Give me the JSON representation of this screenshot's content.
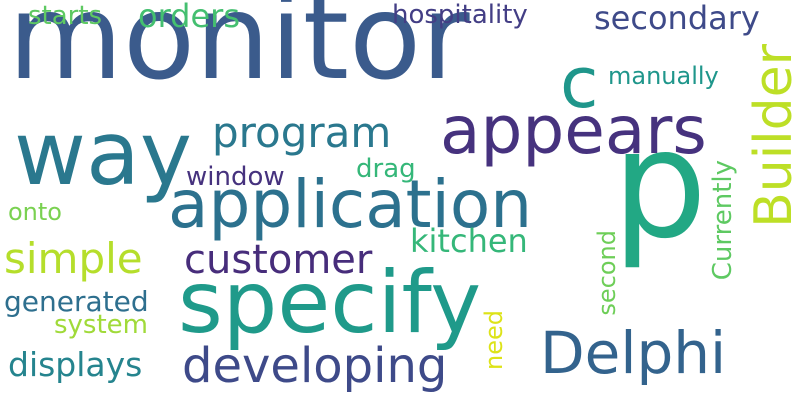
{
  "words": [
    {
      "text": "monitor",
      "color": "#3b5b8c",
      "vertical": false
    },
    {
      "text": "p",
      "color": "#22a884",
      "vertical": false
    },
    {
      "text": "specify",
      "color": "#1f9a8a",
      "vertical": false
    },
    {
      "text": "application",
      "color": "#2c718e",
      "vertical": false
    },
    {
      "text": "way",
      "color": "#2a788e",
      "vertical": false
    },
    {
      "text": "appears",
      "color": "#46327e",
      "vertical": false
    },
    {
      "text": "Builder",
      "color": "#bddf26",
      "vertical": true
    },
    {
      "text": "Delphi",
      "color": "#33638d",
      "vertical": false
    },
    {
      "text": "developing",
      "color": "#3e4a89",
      "vertical": false
    },
    {
      "text": "customer",
      "color": "#472d7b",
      "vertical": false
    },
    {
      "text": "c",
      "color": "#1f968b",
      "vertical": false
    },
    {
      "text": "program",
      "color": "#2a788e",
      "vertical": false
    },
    {
      "text": "simple",
      "color": "#b5de2b",
      "vertical": false
    },
    {
      "text": "kitchen",
      "color": "#35b779",
      "vertical": false
    },
    {
      "text": "orders",
      "color": "#44bf70",
      "vertical": false
    },
    {
      "text": "secondary",
      "color": "#3e4a89",
      "vertical": false
    },
    {
      "text": "hospitality",
      "color": "#433e85",
      "vertical": false
    },
    {
      "text": "displays",
      "color": "#25848e",
      "vertical": false
    },
    {
      "text": "generated",
      "color": "#2e6f8e",
      "vertical": false
    },
    {
      "text": "Currently",
      "color": "#5ec962",
      "vertical": true
    },
    {
      "text": "manually",
      "color": "#1f968b",
      "vertical": false
    },
    {
      "text": "window",
      "color": "#46327e",
      "vertical": false
    },
    {
      "text": "drag",
      "color": "#35b779",
      "vertical": false
    },
    {
      "text": "system",
      "color": "#a0da39",
      "vertical": false
    },
    {
      "text": "starts",
      "color": "#5ec962",
      "vertical": false
    },
    {
      "text": "onto",
      "color": "#7ad151",
      "vertical": false
    },
    {
      "text": "second",
      "color": "#6ece58",
      "vertical": true
    },
    {
      "text": "need",
      "color": "#dde318",
      "vertical": true
    }
  ]
}
